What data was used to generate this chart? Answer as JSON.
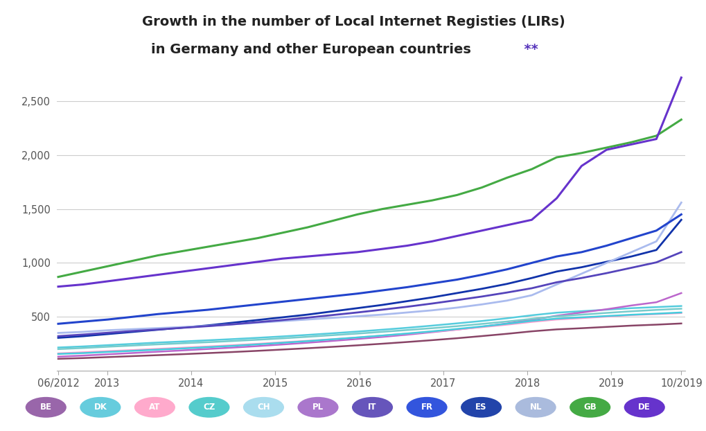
{
  "title_line1": "Growth in the number of Local Internet Registies (LIRs)",
  "title_line2": "in Germany and other European countries",
  "title_stars": "  **",
  "background_color": "#ffffff",
  "grid_color": "#cccccc",
  "ylim": [
    0,
    2800
  ],
  "yticks": [
    0,
    500,
    1000,
    1500,
    2000,
    2500
  ],
  "ytick_labels": [
    "",
    "500",
    "1,000",
    "1,500",
    "2,000",
    "2,500"
  ],
  "x_start": 2012.417,
  "x_end": 2019.833,
  "xtick_positions": [
    2012.417,
    2013.0,
    2014.0,
    2015.0,
    2016.0,
    2017.0,
    2018.0,
    2019.0,
    2019.833
  ],
  "xtick_labels": [
    "06/2012",
    "2013",
    "2014",
    "2015",
    "2016",
    "2017",
    "2018",
    "2019",
    "10/2019"
  ],
  "series": [
    {
      "label": "DE",
      "color": "#6633cc",
      "linewidth": 2.2,
      "zorder": 10,
      "values": [
        780,
        800,
        830,
        860,
        890,
        920,
        950,
        980,
        1010,
        1040,
        1060,
        1080,
        1100,
        1130,
        1160,
        1200,
        1250,
        1300,
        1350,
        1400,
        1600,
        1900,
        2050,
        2100,
        2150,
        2720
      ]
    },
    {
      "label": "GB",
      "color": "#44aa44",
      "linewidth": 2.2,
      "zorder": 9,
      "values": [
        870,
        920,
        970,
        1020,
        1070,
        1110,
        1150,
        1190,
        1230,
        1280,
        1330,
        1390,
        1450,
        1500,
        1540,
        1580,
        1630,
        1700,
        1790,
        1870,
        1980,
        2020,
        2070,
        2120,
        2180,
        2330
      ]
    },
    {
      "label": "NL",
      "color": "#aabbee",
      "linewidth": 2.0,
      "zorder": 7,
      "values": [
        350,
        360,
        375,
        385,
        395,
        405,
        415,
        430,
        445,
        460,
        475,
        490,
        505,
        520,
        540,
        560,
        585,
        615,
        650,
        700,
        800,
        900,
        1000,
        1100,
        1200,
        1560
      ]
    },
    {
      "label": "FR",
      "color": "#2244cc",
      "linewidth": 2.2,
      "zorder": 8,
      "values": [
        435,
        455,
        475,
        500,
        525,
        545,
        565,
        590,
        615,
        640,
        665,
        690,
        715,
        745,
        775,
        810,
        845,
        890,
        940,
        1000,
        1060,
        1100,
        1160,
        1230,
        1300,
        1450
      ]
    },
    {
      "label": "ES",
      "color": "#1133aa",
      "linewidth": 2.0,
      "zorder": 6,
      "values": [
        305,
        320,
        340,
        360,
        380,
        400,
        420,
        445,
        470,
        495,
        520,
        550,
        580,
        610,
        645,
        680,
        720,
        760,
        805,
        860,
        920,
        960,
        1010,
        1060,
        1120,
        1400
      ]
    },
    {
      "label": "IT",
      "color": "#5544bb",
      "linewidth": 2.0,
      "zorder": 7,
      "values": [
        320,
        335,
        352,
        368,
        382,
        398,
        413,
        430,
        450,
        470,
        492,
        516,
        540,
        566,
        593,
        623,
        655,
        688,
        725,
        765,
        820,
        860,
        905,
        955,
        1005,
        1100
      ]
    },
    {
      "label": "PL",
      "color": "#bb66cc",
      "linewidth": 1.8,
      "zorder": 5,
      "values": [
        130,
        140,
        152,
        164,
        176,
        188,
        201,
        214,
        228,
        243,
        259,
        276,
        294,
        313,
        334,
        357,
        381,
        408,
        438,
        472,
        510,
        540,
        570,
        605,
        635,
        720
      ]
    },
    {
      "label": "CH",
      "color": "#77cccc",
      "linewidth": 1.8,
      "zorder": 5,
      "values": [
        200,
        210,
        222,
        233,
        244,
        254,
        264,
        275,
        287,
        300,
        314,
        329,
        344,
        360,
        377,
        394,
        413,
        434,
        456,
        481,
        505,
        520,
        536,
        551,
        564,
        575
      ]
    },
    {
      "label": "AT",
      "color": "#ff99cc",
      "linewidth": 1.8,
      "zorder": 5,
      "values": [
        160,
        170,
        181,
        191,
        202,
        213,
        224,
        236,
        249,
        263,
        277,
        292,
        308,
        325,
        343,
        362,
        382,
        404,
        427,
        453,
        475,
        488,
        502,
        516,
        525,
        535
      ]
    },
    {
      "label": "CZ",
      "color": "#44ccdd",
      "linewidth": 1.8,
      "zorder": 5,
      "values": [
        155,
        163,
        174,
        184,
        195,
        206,
        218,
        230,
        244,
        259,
        274,
        291,
        308,
        326,
        345,
        365,
        387,
        410,
        435,
        462,
        483,
        495,
        507,
        519,
        529,
        540
      ]
    },
    {
      "label": "DK",
      "color": "#55ccdd",
      "linewidth": 1.8,
      "zorder": 4,
      "values": [
        215,
        225,
        237,
        249,
        261,
        271,
        282,
        293,
        305,
        318,
        332,
        347,
        363,
        380,
        398,
        418,
        439,
        461,
        486,
        514,
        538,
        552,
        566,
        580,
        590,
        600
      ]
    },
    {
      "label": "BE",
      "color": "#884466",
      "linewidth": 1.8,
      "zorder": 4,
      "values": [
        110,
        117,
        126,
        135,
        144,
        153,
        163,
        173,
        184,
        196,
        208,
        221,
        235,
        250,
        266,
        283,
        301,
        321,
        342,
        365,
        383,
        394,
        406,
        418,
        427,
        438
      ]
    }
  ],
  "legend_items": [
    {
      "label": "BE",
      "color": "#9966aa"
    },
    {
      "label": "DK",
      "color": "#66ccdd"
    },
    {
      "label": "AT",
      "color": "#ffaacc"
    },
    {
      "label": "CZ",
      "color": "#55cccc"
    },
    {
      "label": "CH",
      "color": "#aaddee"
    },
    {
      "label": "PL",
      "color": "#aa77cc"
    },
    {
      "label": "IT",
      "color": "#6655bb"
    },
    {
      "label": "FR",
      "color": "#3355dd"
    },
    {
      "label": "ES",
      "color": "#2244aa"
    },
    {
      "label": "NL",
      "color": "#aabbdd"
    },
    {
      "label": "GB",
      "color": "#44aa44"
    },
    {
      "label": "DE",
      "color": "#6633cc"
    }
  ]
}
